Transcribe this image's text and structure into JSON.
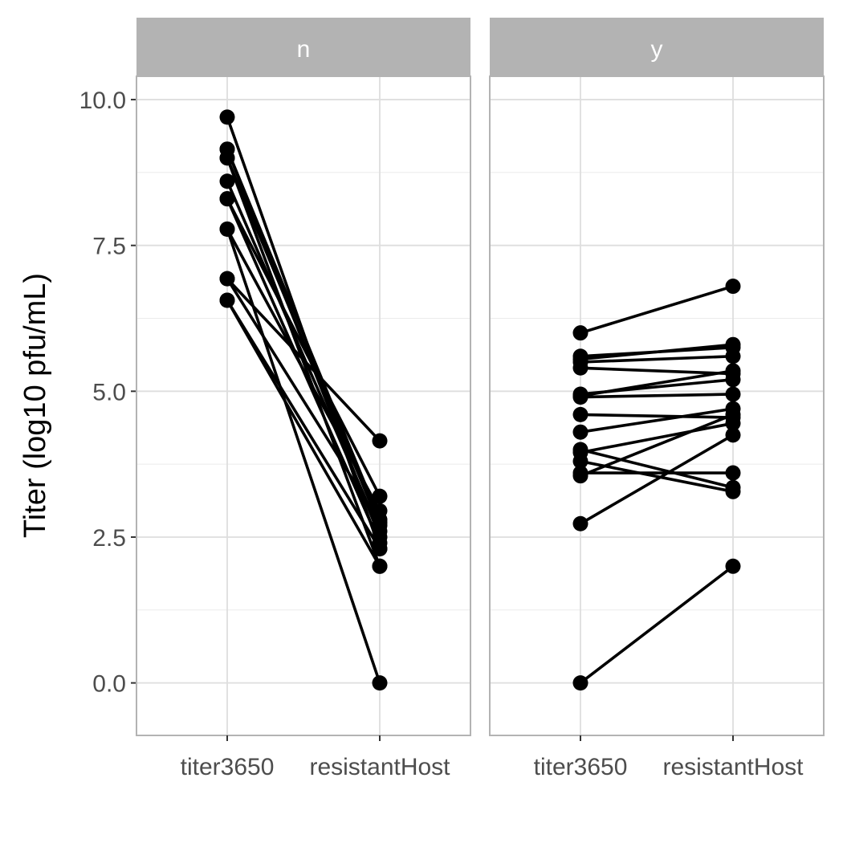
{
  "chart_data": {
    "type": "line",
    "ylabel": "Titer (log10 pfu/mL)",
    "ylim": [
      -0.9,
      10.4
    ],
    "yticks": [
      0.0,
      2.5,
      5.0,
      7.5,
      10.0
    ],
    "ytick_labels": [
      "0.0",
      "2.5",
      "5.0",
      "7.5",
      "10.0"
    ],
    "categories": [
      "titer3650",
      "resistantHost"
    ],
    "grid": true,
    "facets": [
      {
        "label": "n",
        "pairs": [
          [
            9.7,
            2.3
          ],
          [
            9.15,
            2.5
          ],
          [
            9.15,
            2.8
          ],
          [
            9.0,
            2.0
          ],
          [
            9.0,
            2.7
          ],
          [
            8.6,
            2.6
          ],
          [
            8.3,
            3.2
          ],
          [
            8.3,
            2.4
          ],
          [
            7.78,
            2.95
          ],
          [
            7.78,
            0.0
          ],
          [
            6.93,
            4.15
          ],
          [
            6.93,
            2.75
          ],
          [
            6.56,
            2.0
          ],
          [
            6.56,
            2.3
          ]
        ]
      },
      {
        "label": "y",
        "pairs": [
          [
            6.0,
            6.8
          ],
          [
            5.6,
            5.75
          ],
          [
            5.55,
            5.8
          ],
          [
            5.5,
            5.6
          ],
          [
            5.4,
            5.3
          ],
          [
            4.95,
            5.2
          ],
          [
            4.92,
            5.35
          ],
          [
            4.9,
            4.95
          ],
          [
            4.6,
            4.55
          ],
          [
            4.3,
            4.7
          ],
          [
            4.0,
            3.35
          ],
          [
            3.95,
            4.45
          ],
          [
            3.8,
            3.28
          ],
          [
            3.6,
            3.6
          ],
          [
            3.55,
            4.6
          ],
          [
            2.73,
            4.25
          ],
          [
            0.0,
            2.0
          ]
        ]
      }
    ]
  }
}
